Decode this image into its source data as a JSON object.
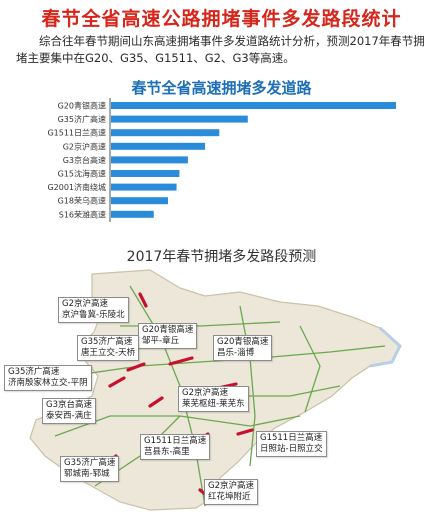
{
  "title": "春节全省高速公路拥堵事件多发路段统计",
  "intro": "综合往年春节期间山东高速拥堵事件多发道路统计分析，预测2017年春节拥堵主要集中在G20、G35、G1511、G2、G3等高速。",
  "chart_data": {
    "type": "bar",
    "orientation": "horizontal",
    "title": "春节全省高速拥堵多发道路",
    "categories": [
      "G20青银高速",
      "G35济广高速",
      "G1511日兰高速",
      "G2京沪高速",
      "G3京台高速",
      "G15沈海高速",
      "G2001济南绕城",
      "G18荣乌高速",
      "S16荣潍高速"
    ],
    "values": [
      100,
      48,
      38,
      33,
      27,
      24,
      23,
      20,
      15
    ],
    "bar_color": "#2a8cd9",
    "grid": false
  },
  "map": {
    "title": "2017年春节拥堵多发路段预测",
    "labels": [
      {
        "road": "G2京沪高速",
        "section": "京沪鲁冀-乐陵北"
      },
      {
        "road": "G20青银高速",
        "section": "邹平-章丘"
      },
      {
        "road": "G20青银高速",
        "section": "昌乐-淄博"
      },
      {
        "road": "G35济广高速",
        "section": "唐王立交-天桥"
      },
      {
        "road": "G35济广高速",
        "section": "济南殷家林立交-平阴"
      },
      {
        "road": "G3京台高速",
        "section": "泰安西-满庄"
      },
      {
        "road": "G2京沪高速",
        "section": "莱芜枢纽-莱芜东"
      },
      {
        "road": "G1511日兰高速",
        "section": "莒县东-高里"
      },
      {
        "road": "G1511日兰高速",
        "section": "日照站-日照立交"
      },
      {
        "road": "G35济广高速",
        "section": "郓城南-郓城"
      },
      {
        "road": "G2京沪高速",
        "section": "红花埠附近"
      }
    ],
    "land_color": "#ece7d8",
    "sea_color": "#ffffff",
    "congestion_color": "#c8102e"
  }
}
